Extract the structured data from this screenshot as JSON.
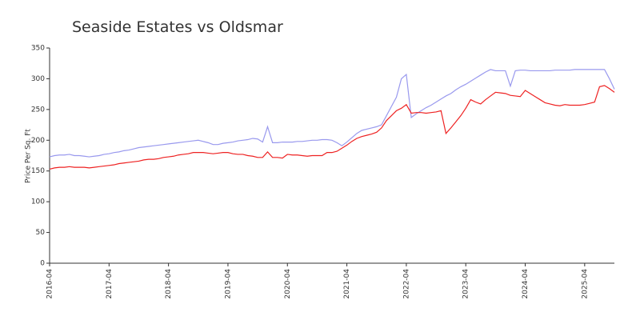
{
  "chart_data": {
    "type": "line",
    "title": "Seaside Estates vs Oldsmar",
    "y_label": "Price Per Sq. Ft",
    "x": [
      "2016-04",
      "2016-05",
      "2016-06",
      "2016-07",
      "2016-08",
      "2016-09",
      "2016-10",
      "2016-11",
      "2016-12",
      "2017-01",
      "2017-02",
      "2017-03",
      "2017-04",
      "2017-05",
      "2017-06",
      "2017-07",
      "2017-08",
      "2017-09",
      "2017-10",
      "2017-11",
      "2017-12",
      "2018-01",
      "2018-02",
      "2018-03",
      "2018-04",
      "2018-05",
      "2018-06",
      "2018-07",
      "2018-08",
      "2018-09",
      "2018-10",
      "2018-11",
      "2018-12",
      "2019-01",
      "2019-02",
      "2019-03",
      "2019-04",
      "2019-05",
      "2019-06",
      "2019-07",
      "2019-08",
      "2019-09",
      "2019-10",
      "2019-11",
      "2019-12",
      "2020-01",
      "2020-02",
      "2020-03",
      "2020-04",
      "2020-05",
      "2020-06",
      "2020-07",
      "2020-08",
      "2020-09",
      "2020-10",
      "2020-11",
      "2020-12",
      "2021-01",
      "2021-02",
      "2021-03",
      "2021-04",
      "2021-05",
      "2021-06",
      "2021-07",
      "2021-08",
      "2021-09",
      "2021-10",
      "2021-11",
      "2021-12",
      "2022-01",
      "2022-02",
      "2022-03",
      "2022-04",
      "2022-05",
      "2022-06",
      "2022-07",
      "2022-08",
      "2022-09",
      "2022-10",
      "2022-11",
      "2022-12",
      "2023-01",
      "2023-02",
      "2023-03",
      "2023-04",
      "2023-05",
      "2023-06",
      "2023-07",
      "2023-08",
      "2023-09",
      "2023-10",
      "2023-11",
      "2023-12",
      "2024-01",
      "2024-02",
      "2024-03",
      "2024-04",
      "2024-05",
      "2024-06",
      "2024-07",
      "2024-08",
      "2024-09",
      "2024-10",
      "2024-11",
      "2024-12",
      "2025-01",
      "2025-02",
      "2025-03",
      "2025-04",
      "2025-05",
      "2025-06",
      "2025-07",
      "2025-08",
      "2025-09",
      "2025-10"
    ],
    "xticks": [
      "2016-04",
      "2017-04",
      "2018-04",
      "2019-04",
      "2020-04",
      "2021-04",
      "2022-04",
      "2023-04",
      "2024-04",
      "2025-04"
    ],
    "series": [
      {
        "color": "#9999ee",
        "values": [
          173,
          175,
          176,
          176,
          177,
          175,
          175,
          174,
          173,
          174,
          175,
          177,
          178,
          180,
          181,
          183,
          184,
          186,
          188,
          189,
          190,
          191,
          192,
          193,
          194,
          195,
          196,
          197,
          198,
          199,
          200,
          198,
          196,
          193,
          193,
          195,
          196,
          197,
          199,
          200,
          201,
          203,
          202,
          197,
          222,
          196,
          196,
          197,
          197,
          197,
          198,
          198,
          199,
          200,
          200,
          201,
          201,
          200,
          196,
          191,
          197,
          204,
          211,
          216,
          218,
          220,
          222,
          225,
          240,
          255,
          270,
          300,
          307,
          237,
          243,
          248,
          253,
          257,
          262,
          267,
          272,
          276,
          282,
          287,
          291,
          296,
          301,
          306,
          311,
          315,
          313,
          313,
          313,
          288,
          313,
          314,
          314,
          313,
          313,
          313,
          313,
          313,
          314,
          314,
          314,
          314,
          315,
          315,
          315,
          315,
          315,
          315,
          315,
          300,
          283
        ]
      },
      {
        "color": "#ee2222",
        "values": [
          153,
          155,
          156,
          156,
          157,
          156,
          156,
          156,
          155,
          156,
          157,
          158,
          159,
          160,
          162,
          163,
          164,
          165,
          166,
          168,
          169,
          169,
          170,
          172,
          173,
          174,
          176,
          177,
          178,
          180,
          180,
          180,
          179,
          178,
          179,
          180,
          180,
          178,
          177,
          177,
          175,
          174,
          172,
          172,
          181,
          172,
          172,
          171,
          177,
          176,
          176,
          175,
          174,
          175,
          175,
          175,
          180,
          180,
          182,
          187,
          192,
          198,
          203,
          206,
          208,
          210,
          213,
          220,
          232,
          240,
          248,
          252,
          258,
          244,
          245,
          245,
          244,
          245,
          246,
          248,
          211,
          220,
          230,
          240,
          252,
          266,
          262,
          259,
          266,
          272,
          278,
          277,
          276,
          273,
          272,
          271,
          281,
          276,
          271,
          266,
          261,
          259,
          257,
          256,
          258,
          257,
          257,
          257,
          258,
          260,
          262,
          287,
          289,
          284,
          278
        ]
      }
    ],
    "ylim": [
      0,
      350
    ],
    "yticks": [
      0,
      50,
      100,
      150,
      200,
      250,
      300,
      350
    ]
  }
}
